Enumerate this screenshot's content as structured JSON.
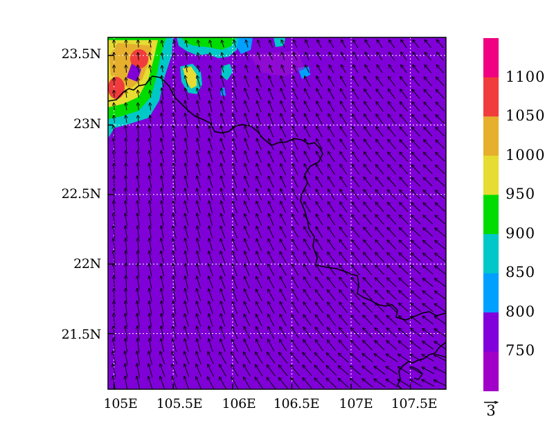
{
  "map": {
    "lat_labels": [
      "23.5N",
      "23N",
      "22.5N",
      "22N",
      "21.5N"
    ],
    "lon_labels": [
      "105E",
      "105.5E",
      "106E",
      "106.5E",
      "107E",
      "107.5E"
    ],
    "lat_values": [
      23.5,
      23.0,
      22.5,
      22.0,
      21.5
    ],
    "lon_values": [
      105.0,
      105.5,
      106.0,
      106.5,
      107.0,
      107.5
    ],
    "lon_range": [
      104.95,
      107.8
    ],
    "lat_range": [
      21.1,
      23.63
    ],
    "grid": "dotted-white",
    "field_background_color": "#8000d8",
    "vector_color": "#000000",
    "boundary_color": "#000000"
  },
  "colorbar": {
    "labels": [
      "750",
      "800",
      "850",
      "900",
      "950",
      "1000",
      "1050",
      "1100"
    ],
    "colors": [
      "#a000c8",
      "#8200dc",
      "#00a0ff",
      "#00c8c8",
      "#00dc00",
      "#e6dc32",
      "#e6af2d",
      "#f03c3c",
      "#f00082"
    ]
  },
  "vector_reference": {
    "label": "3"
  }
}
